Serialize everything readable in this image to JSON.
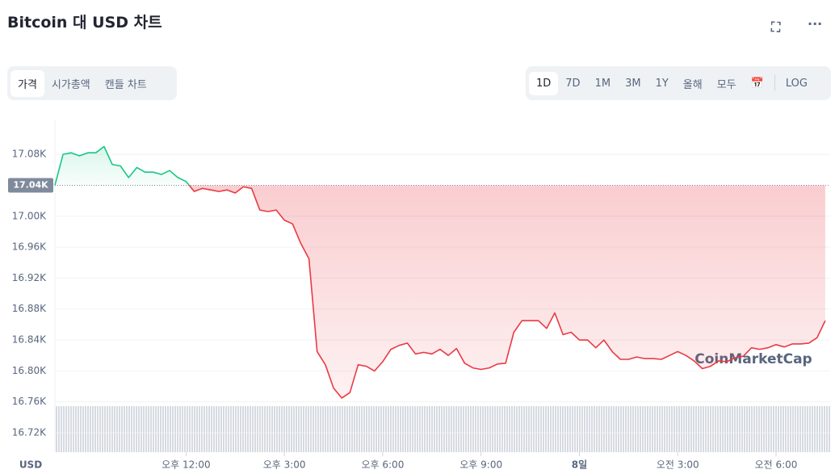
{
  "header": {
    "title": "Bitcoin 대 USD 차트"
  },
  "tabs": [
    "가격",
    "시가총액",
    "캔들 차트"
  ],
  "range_buttons": [
    "1D",
    "7D",
    "1M",
    "3M",
    "1Y",
    "올해",
    "모두",
    "LOG"
  ],
  "chart_data": {
    "type": "line",
    "currency_label": "USD",
    "watermark": "CoinMarketCap",
    "color_up": "#16c784",
    "color_down": "#ea3943",
    "grid": true,
    "x": [
      8,
      8.25,
      8.5,
      8.75,
      9,
      9.25,
      9.5,
      9.75,
      10,
      10.25,
      10.5,
      10.75,
      11,
      11.25,
      11.5,
      11.75,
      12,
      12.25,
      12.5,
      12.75,
      13,
      13.25,
      13.5,
      13.75,
      14,
      14.25,
      14.5,
      14.75,
      15,
      15.25,
      15.5,
      15.75,
      16,
      16.25,
      16.5,
      16.75,
      17,
      17.25,
      17.5,
      17.75,
      18,
      18.25,
      18.5,
      18.75,
      19,
      19.25,
      19.5,
      19.75,
      20,
      20.25,
      20.5,
      20.75,
      21,
      21.25,
      21.5,
      21.75,
      22,
      22.25,
      22.5,
      22.75,
      23,
      23.25,
      23.5,
      23.75,
      24,
      24.25,
      24.5,
      24.75,
      25,
      25.25,
      25.5,
      25.75,
      26,
      26.25,
      26.5,
      26.75,
      27,
      27.25,
      27.5,
      27.75,
      28,
      28.25,
      28.5,
      28.75,
      29,
      29.25,
      29.5,
      29.75,
      30,
      30.25,
      30.5,
      30.75,
      31,
      31.25,
      31.5
    ],
    "values": [
      17040,
      17080,
      17082,
      17078,
      17082,
      17082,
      17090,
      17067,
      17065,
      17050,
      17063,
      17057,
      17057,
      17054,
      17059,
      17050,
      17045,
      17032,
      17036,
      17034,
      17032,
      17034,
      17030,
      17038,
      17036,
      17008,
      17006,
      17008,
      16995,
      16990,
      16965,
      16945,
      16825,
      16808,
      16778,
      16765,
      16772,
      16808,
      16806,
      16800,
      16812,
      16828,
      16833,
      16836,
      16822,
      16824,
      16822,
      16828,
      16820,
      16829,
      16810,
      16804,
      16802,
      16804,
      16809,
      16810,
      16850,
      16865,
      16865,
      16865,
      16855,
      16875,
      16847,
      16850,
      16840,
      16840,
      16830,
      16840,
      16825,
      16815,
      16815,
      16818,
      16816,
      16816,
      16815,
      16820,
      16825,
      16820,
      16813,
      16803,
      16806,
      16813,
      16812,
      16817,
      16819,
      16830,
      16828,
      16830,
      16834,
      16831,
      16835,
      16835,
      16836,
      16843,
      16865
    ],
    "reference_line": {
      "value": 17040,
      "label": "17.04K"
    },
    "xlim": [
      8,
      31.65
    ],
    "xticks": [
      {
        "value": 12,
        "label": "오후 12:00"
      },
      {
        "value": 15,
        "label": "오후 3:00"
      },
      {
        "value": 18,
        "label": "오후 6:00"
      },
      {
        "value": 21,
        "label": "오후 9:00"
      },
      {
        "value": 24,
        "label": "8일"
      },
      {
        "value": 27,
        "label": "오전 3:00"
      },
      {
        "value": 30,
        "label": "오전 6:00"
      }
    ],
    "ylim": [
      16695,
      17125
    ],
    "yticks": [
      {
        "value": 16720,
        "label": "16.72K"
      },
      {
        "value": 16760,
        "label": "16.76K"
      },
      {
        "value": 16800,
        "label": "16.80K"
      },
      {
        "value": 16840,
        "label": "16.84K"
      },
      {
        "value": 16880,
        "label": "16.88K"
      },
      {
        "value": 16920,
        "label": "16.92K"
      },
      {
        "value": 16960,
        "label": "16.96K"
      },
      {
        "value": 17000,
        "label": "17.00K"
      },
      {
        "value": 17080,
        "label": "17.08K"
      }
    ]
  }
}
